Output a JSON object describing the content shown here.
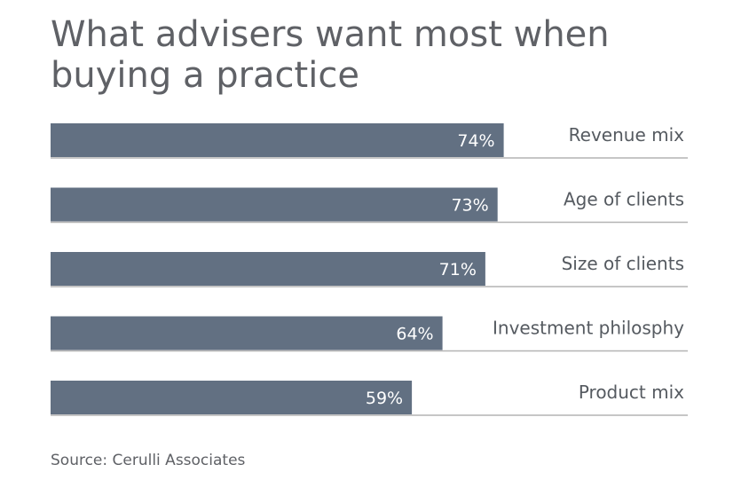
{
  "chart_data": {
    "type": "bar",
    "orientation": "horizontal",
    "title": "What advisers want most when buying a practice",
    "categories": [
      "Revenue mix",
      "Age of clients",
      "Size of clients",
      "Investment philosphy",
      "Product mix"
    ],
    "values": [
      74,
      73,
      71,
      64,
      59
    ],
    "value_labels": [
      "74%",
      "73%",
      "71%",
      "64%",
      "59%"
    ],
    "unit": "%",
    "xlim": [
      0,
      100
    ],
    "grid": false,
    "legend": "none",
    "bar_color": "#627082",
    "source": "Source: Cerulli Associates"
  }
}
